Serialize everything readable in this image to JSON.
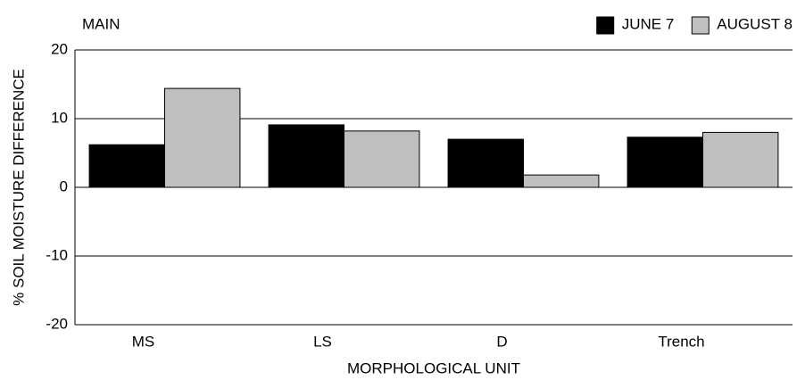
{
  "chart_data": {
    "type": "bar",
    "title": "MAIN",
    "xlabel": "MORPHOLOGICAL UNIT",
    "ylabel": "% SOIL MOISTURE DIFFERENCE",
    "categories": [
      "MS",
      "LS",
      "D",
      "Trench"
    ],
    "series": [
      {
        "name": "JUNE 7",
        "color": "#000000",
        "values": [
          6.2,
          9.1,
          7.0,
          7.3
        ]
      },
      {
        "name": "AUGUST 8",
        "color": "#bfbfbf",
        "values": [
          14.4,
          8.2,
          1.8,
          8.0
        ]
      }
    ],
    "ylim": [
      -20,
      20
    ],
    "yticks": [
      -20,
      -10,
      0,
      10,
      20
    ],
    "grid": true,
    "legend": "top-right"
  }
}
